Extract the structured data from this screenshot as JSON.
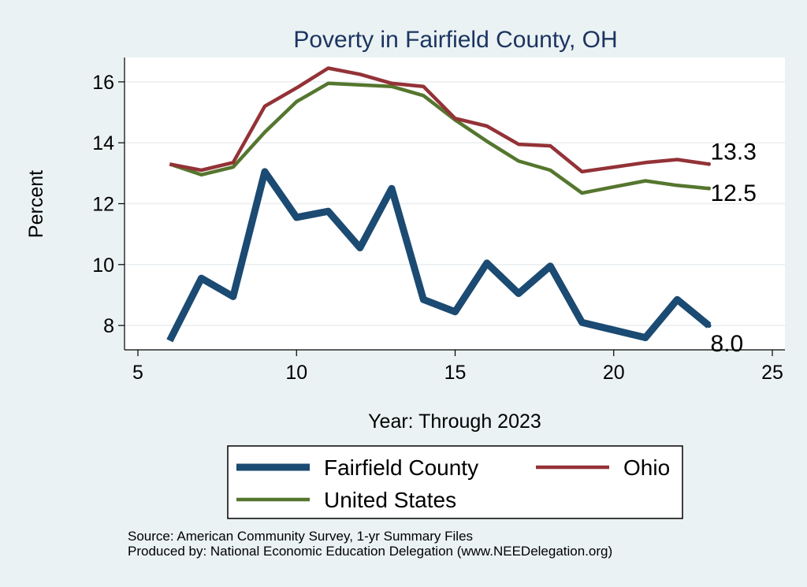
{
  "chart_data": {
    "type": "line",
    "title": "Poverty in Fairfield County, OH",
    "xlabel": "Year: Through 2023",
    "ylabel": "Percent",
    "xlim": [
      5,
      25
    ],
    "ylim": [
      7.2,
      16.8
    ],
    "x_ticks": [
      "5",
      "10",
      "15",
      "20",
      "25"
    ],
    "y_ticks": [
      "8",
      "10",
      "12",
      "14",
      "16"
    ],
    "grid": true,
    "legend_position": "bottom",
    "x": [
      6,
      7,
      8,
      9,
      10,
      11,
      12,
      13,
      14,
      15,
      16,
      17,
      18,
      19,
      20,
      21,
      22,
      23
    ],
    "series": [
      {
        "name": "Fairfield County",
        "color": "#1b4a72",
        "values": [
          7.5,
          9.55,
          8.95,
          13.05,
          11.55,
          11.75,
          10.55,
          12.5,
          8.85,
          8.45,
          10.05,
          9.05,
          9.95,
          8.1,
          7.85,
          7.6,
          8.85,
          8.0
        ],
        "end_label": "8.0"
      },
      {
        "name": "Ohio",
        "color": "#933237",
        "values": [
          13.3,
          13.1,
          13.35,
          15.2,
          15.8,
          16.45,
          16.25,
          15.95,
          15.85,
          14.8,
          14.55,
          13.95,
          13.9,
          13.05,
          13.2,
          13.35,
          13.45,
          13.3
        ],
        "end_label": "13.3"
      },
      {
        "name": "United States",
        "color": "#55762e",
        "values": [
          13.3,
          12.95,
          13.2,
          14.35,
          15.35,
          15.95,
          15.9,
          15.85,
          15.55,
          14.75,
          14.05,
          13.4,
          13.1,
          12.35,
          12.55,
          12.75,
          12.6,
          12.5
        ],
        "end_label": "12.5"
      }
    ]
  },
  "source": {
    "line1": "Source: American Community Survey, 1-yr Summary Files",
    "line2": "Produced by: National Economic Education Delegation (www.NEEDelegation.org)"
  }
}
